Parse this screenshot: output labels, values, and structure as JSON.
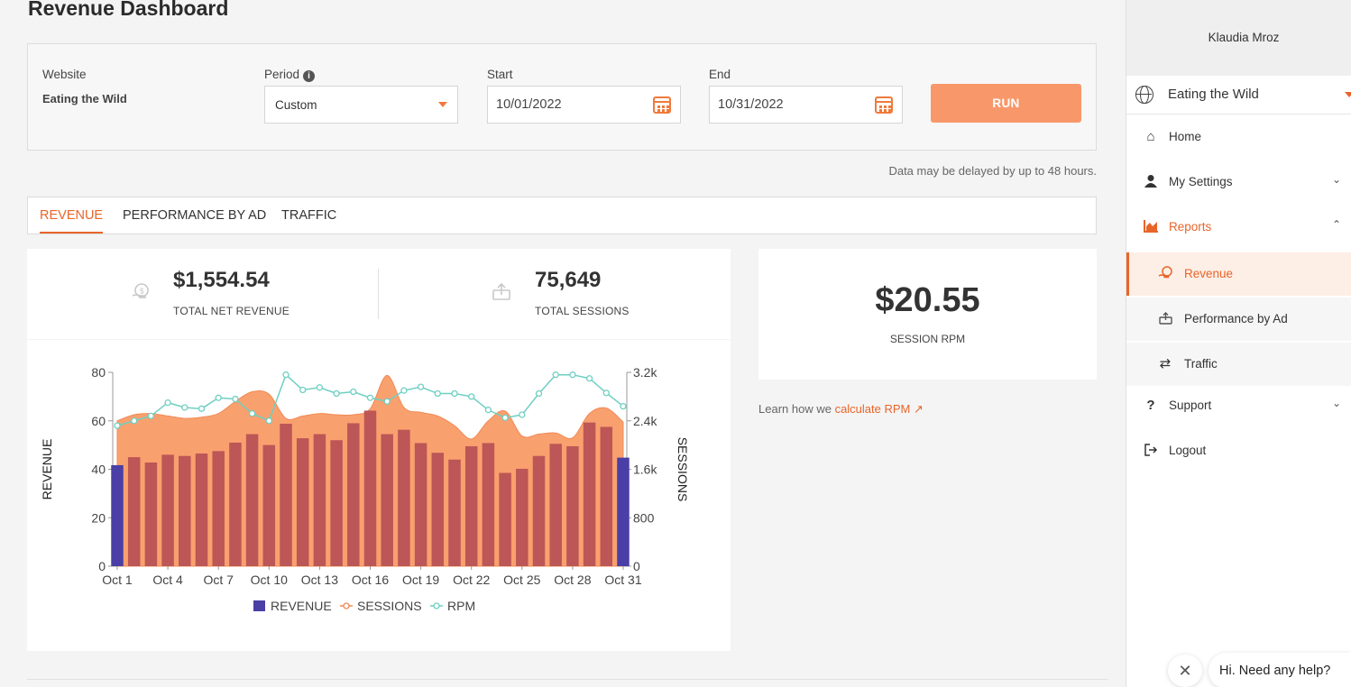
{
  "page": {
    "title": "Revenue Dashboard"
  },
  "filters": {
    "website_label": "Website",
    "website_value": "Eating the Wild",
    "period_label": "Period",
    "period_value": "Custom",
    "start_label": "Start",
    "start_value": "10/01/2022",
    "end_label": "End",
    "end_value": "10/31/2022",
    "run_label": "RUN",
    "info_icon": "i"
  },
  "delay_note": "Data may be delayed by up to 48 hours.",
  "tabs": [
    {
      "label": "REVENUE",
      "active": true
    },
    {
      "label": "PERFORMANCE BY AD",
      "active": false
    },
    {
      "label": "TRAFFIC",
      "active": false
    }
  ],
  "stats": {
    "revenue_value": "$1,554.54",
    "revenue_label": "TOTAL NET REVENUE",
    "sessions_value": "75,649",
    "sessions_label": "TOTAL SESSIONS"
  },
  "rpm": {
    "value": "$20.55",
    "label": "SESSION RPM",
    "learn_prefix": "Learn how we ",
    "learn_link": "calculate RPM"
  },
  "sidebar": {
    "user_name": "Klaudia Mroz",
    "site_name": "Eating the Wild",
    "items": [
      {
        "label": "Home",
        "icon": "home-icon"
      },
      {
        "label": "My Settings",
        "icon": "user-icon"
      },
      {
        "label": "Reports",
        "icon": "chart-icon"
      },
      {
        "label": "Revenue",
        "icon": "revenue-icon"
      },
      {
        "label": "Performance by Ad",
        "icon": "ad-icon"
      },
      {
        "label": "Traffic",
        "icon": "traffic-icon"
      },
      {
        "label": "Support",
        "icon": "question-icon"
      },
      {
        "label": "Logout",
        "icon": "logout-icon"
      }
    ]
  },
  "help": {
    "text": "Hi. Need any help?",
    "close": "✕"
  },
  "colors": {
    "accent": "#e8652a",
    "bar": "#bd5656",
    "bar_edge": "#4a3fa6",
    "area": "#f9a06f",
    "rpm_line": "#6fcfc2"
  },
  "chart_data": {
    "type": "bar",
    "categories": [
      "Oct 1",
      "Oct 2",
      "Oct 3",
      "Oct 4",
      "Oct 5",
      "Oct 6",
      "Oct 7",
      "Oct 8",
      "Oct 9",
      "Oct 10",
      "Oct 11",
      "Oct 12",
      "Oct 13",
      "Oct 14",
      "Oct 15",
      "Oct 16",
      "Oct 17",
      "Oct 18",
      "Oct 19",
      "Oct 20",
      "Oct 21",
      "Oct 22",
      "Oct 23",
      "Oct 24",
      "Oct 25",
      "Oct 26",
      "Oct 27",
      "Oct 28",
      "Oct 29",
      "Oct 30",
      "Oct 31"
    ],
    "tick_labels": [
      "Oct 1",
      "Oct 4",
      "Oct 7",
      "Oct 10",
      "Oct 13",
      "Oct 16",
      "Oct 19",
      "Oct 22",
      "Oct 25",
      "Oct 28",
      "Oct 31"
    ],
    "ylabel": "REVENUE",
    "y2label": "SESSIONS",
    "ylim": [
      0,
      80
    ],
    "y2lim": [
      0,
      3200
    ],
    "yticks": [
      "0",
      "20",
      "40",
      "60",
      "80"
    ],
    "y2ticks": [
      "0",
      "800",
      "1.6k",
      "2.4k",
      "3.2k"
    ],
    "legend": [
      "REVENUE",
      "SESSIONS",
      "RPM"
    ],
    "legend_position": "bottom",
    "series": [
      {
        "name": "REVENUE",
        "type": "bar",
        "axis": "left",
        "values": [
          41.7,
          45,
          42.8,
          46,
          45.5,
          46.5,
          47.5,
          51,
          54.5,
          50,
          58.8,
          52.8,
          54.5,
          52,
          59,
          64.2,
          54.5,
          56.3,
          50.8,
          46.8,
          44,
          49.5,
          50.8,
          38.5,
          40.2,
          45.5,
          50.5,
          49.5,
          59.3,
          57.5,
          44.8
        ]
      },
      {
        "name": "SESSIONS",
        "type": "area",
        "axis": "right",
        "values": [
          2400,
          2500,
          2520,
          2480,
          2440,
          2460,
          2520,
          2720,
          2880,
          2840,
          2440,
          2480,
          2520,
          2500,
          2500,
          2600,
          3150,
          2620,
          2540,
          2480,
          2320,
          2100,
          2400,
          2560,
          2150,
          2180,
          2200,
          2120,
          2520,
          2610,
          2380
        ]
      },
      {
        "name": "RPM",
        "type": "line",
        "axis": "right",
        "values": [
          2320,
          2400,
          2480,
          2700,
          2620,
          2600,
          2780,
          2760,
          2520,
          2400,
          3160,
          2910,
          2950,
          2850,
          2880,
          2780,
          2720,
          2900,
          2960,
          2850,
          2850,
          2800,
          2580,
          2450,
          2500,
          2850,
          3160,
          3160,
          3100,
          2860,
          2640
        ]
      }
    ]
  }
}
